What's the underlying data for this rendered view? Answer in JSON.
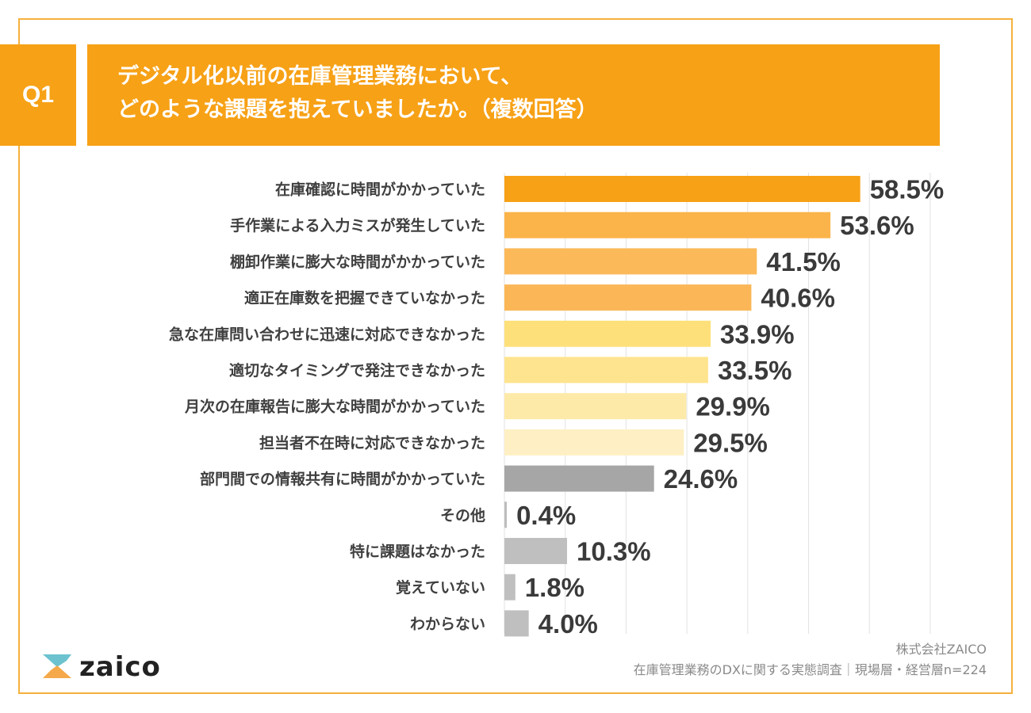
{
  "header": {
    "question_badge": "Q1",
    "title_line1": "デジタル化以前の在庫管理業務において、",
    "title_line2": "どのような課題を抱えていましたか。（複数回答）",
    "accent_color": "#f7a116"
  },
  "chart_data": {
    "type": "bar",
    "orientation": "horizontal",
    "title": "デジタル化以前の在庫管理業務において、どのような課題を抱えていましたか。（複数回答）",
    "xlabel": "",
    "ylabel": "",
    "xlim": [
      0,
      70
    ],
    "grid": true,
    "gridline_step": 10,
    "value_suffix": "%",
    "categories": [
      "在庫確認に時間がかかっていた",
      "手作業による入力ミスが発生していた",
      "棚卸作業に膨大な時間がかかっていた",
      "適正在庫数を把握できていなかった",
      "急な在庫問い合わせに迅速に対応できなかった",
      "適切なタイミングで発注できなかった",
      "月次の在庫報告に膨大な時間がかかっていた",
      "担当者不在時に対応できなかった",
      "部門間での情報共有に時間がかかっていた",
      "その他",
      "特に課題はなかった",
      "覚えていない",
      "わからない"
    ],
    "values": [
      58.5,
      53.6,
      41.5,
      40.6,
      33.9,
      33.5,
      29.9,
      29.5,
      24.6,
      0.4,
      10.3,
      1.8,
      4.0
    ],
    "value_labels": [
      "58.5%",
      "53.6%",
      "41.5%",
      "40.6%",
      "33.9%",
      "33.5%",
      "29.9%",
      "29.5%",
      "24.6%",
      "0.4%",
      "10.3%",
      "1.8%",
      "4.0%"
    ],
    "colors": [
      "#f7a116",
      "#fbb44a",
      "#fbb95a",
      "#fbb757",
      "#fde07a",
      "#fee48f",
      "#feeaa8",
      "#fef0c4",
      "#a6a6a6",
      "#bdbdbd",
      "#bfbfbf",
      "#bfbfbf",
      "#bfbfbf"
    ]
  },
  "footer": {
    "company": "株式会社ZAICO",
    "survey": "在庫管理業務のDXに関する実態調査｜現場層・経営層n=224",
    "logo_text": "zaico"
  }
}
